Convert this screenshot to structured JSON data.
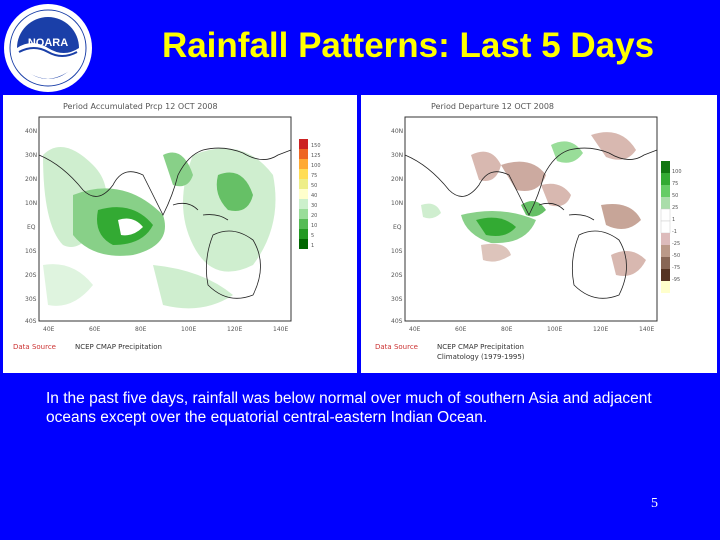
{
  "slide": {
    "title": "Rainfall Patterns: Last 5 Days",
    "caption": "In the past five days, rainfall was below normal over much of southern Asia and adjacent oceans except over the equatorial central-eastern Indian Ocean.",
    "page_number": "5"
  },
  "logo": {
    "center_text": "NOARA",
    "ring_text": "NATIONAL OCEANIC AND ATMOSPHERIC ADMINISTRATION • U.S. DEPARTMENT OF COMMERCE"
  },
  "maps": [
    {
      "header": "Period Accumulated Prcp 12 OCT 2008",
      "source_label": "Data Source",
      "source_text": "NCEP CMAP Precipitation",
      "lat_labels": [
        "40N",
        "30N",
        "20N",
        "10N",
        "EQ",
        "10S",
        "20S",
        "30S",
        "40S"
      ],
      "lon_labels": [
        "40E",
        "60E",
        "80E",
        "100E",
        "120E",
        "140E"
      ],
      "legend_labels": [
        "150",
        "125",
        "100",
        "75",
        "50",
        "40",
        "30",
        "20",
        "10",
        "5",
        "1"
      ],
      "legend_colors": [
        "#cc2222",
        "#ee6622",
        "#ffaa33",
        "#ffdd55",
        "#eeee88",
        "#ffffcc",
        "#ccf0cc",
        "#99dd99",
        "#55bb55",
        "#229922",
        "#006600"
      ]
    },
    {
      "header": "Period Departure 12 OCT 2008",
      "source_label": "Data Source",
      "source_text": "NCEP CMAP Precipitation",
      "source_text2": "Climatology (1979-1995)",
      "lat_labels": [
        "40N",
        "30N",
        "20N",
        "10N",
        "EQ",
        "10S",
        "20S",
        "30S",
        "40S"
      ],
      "lon_labels": [
        "40E",
        "60E",
        "80E",
        "100E",
        "120E",
        "140E"
      ],
      "legend_labels": [
        "100",
        "75",
        "50",
        "25",
        "1",
        "-1",
        "-25",
        "-50",
        "-75",
        "-95"
      ],
      "legend_colors": [
        "#117711",
        "#33aa33",
        "#66cc66",
        "#aaddaa",
        "#ffffff",
        "#ffffff",
        "#ddbbbb",
        "#bb9988",
        "#886655",
        "#553322",
        "#332211",
        "#ffffcc"
      ]
    }
  ]
}
